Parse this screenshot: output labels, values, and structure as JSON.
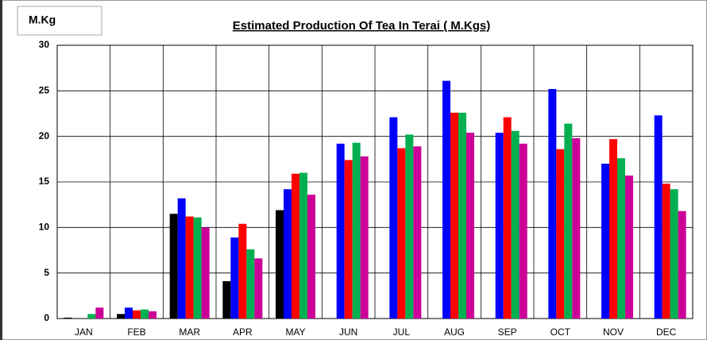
{
  "chart_data": {
    "type": "bar",
    "title": "Estimated Production Of Tea In Terai ( M.Kgs)",
    "y_label": "M.Kg",
    "categories": [
      "JAN",
      "FEB",
      "MAR",
      "APR",
      "MAY",
      "JUN",
      "JUL",
      "AUG",
      "SEP",
      "OCT",
      "NOV",
      "DEC"
    ],
    "series": [
      {
        "color": "#000000",
        "values": [
          0.1,
          0.5,
          11.5,
          4.1,
          11.9,
          null,
          null,
          null,
          null,
          null,
          null,
          null
        ]
      },
      {
        "color": "#0000ff",
        "values": [
          0,
          1.2,
          13.2,
          8.9,
          14.2,
          19.2,
          22.1,
          26.1,
          20.4,
          25.2,
          17.0,
          22.3
        ]
      },
      {
        "color": "#ff0000",
        "values": [
          0,
          0.9,
          11.2,
          10.4,
          15.9,
          17.4,
          18.7,
          22.6,
          22.1,
          18.6,
          19.7,
          14.8
        ]
      },
      {
        "color": "#00b050",
        "values": [
          0.5,
          1.0,
          11.1,
          7.6,
          16.0,
          19.3,
          20.2,
          22.6,
          20.6,
          21.4,
          17.6,
          14.2
        ]
      },
      {
        "color": "#cc0099",
        "values": [
          1.2,
          0.8,
          10.0,
          6.6,
          13.6,
          17.8,
          18.9,
          20.4,
          19.2,
          19.8,
          15.7,
          11.8
        ]
      }
    ],
    "ylim": [
      0,
      30
    ],
    "yticks": [
      0,
      5,
      10,
      15,
      20,
      25,
      30
    ],
    "grid": true
  }
}
